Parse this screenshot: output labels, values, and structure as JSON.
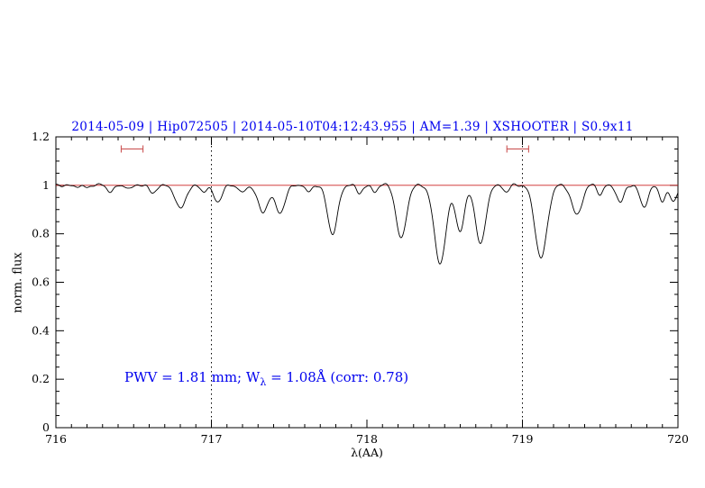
{
  "chart_data": {
    "type": "line",
    "title": "2014-05-09 | Hip072505 | 2014-05-10T04:12:43.955 | AM=1.39 | XSHOOTER | S0.9x11",
    "title_color": "#0000ee",
    "xlabel": "λ(AA)",
    "ylabel": "norm. flux",
    "xlim": [
      716,
      720
    ],
    "ylim": [
      0,
      1.2
    ],
    "x_major_ticks": [
      716,
      717,
      718,
      719,
      720
    ],
    "x_tick_labels": [
      "716",
      "717",
      "718",
      "719",
      "720"
    ],
    "y_major_ticks": [
      0,
      0.2,
      0.4,
      0.6,
      0.8,
      1,
      1.2
    ],
    "y_tick_labels": [
      "0",
      "0.2",
      "0.4",
      "0.6",
      "0.8",
      "1",
      "1.2"
    ],
    "x_minor_step": 0.1,
    "y_minor_step": 0.05,
    "grid": "off",
    "axis_color": "#000000",
    "continuum_line": {
      "y": 1.0,
      "color": "#cc2222"
    },
    "vertical_dotted_lines": {
      "x": [
        717,
        719
      ],
      "color": "#000000",
      "style": "dotted"
    },
    "range_markers": {
      "y": 1.15,
      "color": "#cc5555",
      "intervals": [
        [
          716.42,
          716.56
        ],
        [
          718.9,
          719.04
        ]
      ]
    },
    "spectrum": {
      "color": "#000000",
      "continuum_level": 1.0,
      "sample_step": 0.004,
      "absorption_lines": [
        [
          716.2,
          0.012,
          0.02
        ],
        [
          716.35,
          0.022,
          0.022
        ],
        [
          716.48,
          0.018,
          0.018
        ],
        [
          716.62,
          0.03,
          0.02
        ],
        [
          716.8,
          0.1,
          0.032
        ],
        [
          716.95,
          0.022,
          0.018
        ],
        [
          717.04,
          0.07,
          0.028
        ],
        [
          717.2,
          0.03,
          0.018
        ],
        [
          717.33,
          0.115,
          0.032
        ],
        [
          717.44,
          0.11,
          0.032
        ],
        [
          717.62,
          0.032,
          0.018
        ],
        [
          717.78,
          0.2,
          0.032
        ],
        [
          717.95,
          0.03,
          0.018
        ],
        [
          718.05,
          0.025,
          0.018
        ],
        [
          718.22,
          0.22,
          0.032
        ],
        [
          718.47,
          0.32,
          0.038
        ],
        [
          718.6,
          0.19,
          0.028
        ],
        [
          718.73,
          0.245,
          0.032
        ],
        [
          718.9,
          0.03,
          0.018
        ],
        [
          719.12,
          0.3,
          0.038
        ],
        [
          719.35,
          0.12,
          0.032
        ],
        [
          719.5,
          0.04,
          0.018
        ],
        [
          719.63,
          0.07,
          0.022
        ],
        [
          719.78,
          0.09,
          0.026
        ],
        [
          719.9,
          0.06,
          0.02
        ],
        [
          719.97,
          0.07,
          0.022
        ]
      ]
    },
    "annotation": {
      "text_plain": "PWV = 1.81 mm; W_λ = 1.08Å (corr: 0.78)",
      "prefix": "PWV = 1.81 mm; W",
      "sub": "λ",
      "suffix": " = 1.08Å (corr: 0.78)",
      "color": "#0000ee"
    }
  }
}
